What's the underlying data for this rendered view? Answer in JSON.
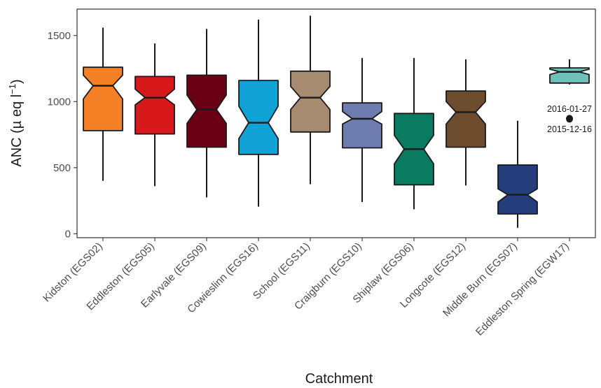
{
  "chart_data": {
    "type": "box",
    "xlabel": "Catchment",
    "ylabel": "ANC (µ eq l⁻¹)",
    "ylim": [
      -30,
      1700
    ],
    "yticks": [
      0,
      500,
      1000,
      1500
    ],
    "grid": false,
    "notched": true,
    "series": [
      {
        "name": "Kidston (EGS02)",
        "color": "#F58025",
        "min": 400,
        "q1": 780,
        "median": 1120,
        "q3": 1260,
        "max": 1560,
        "notch_low": 1020,
        "notch_high": 1200
      },
      {
        "name": "Eddleston (EGS05)",
        "color": "#D7191C",
        "min": 360,
        "q1": 755,
        "median": 1030,
        "q3": 1190,
        "max": 1440,
        "notch_low": 975,
        "notch_high": 1095
      },
      {
        "name": "Earlyvale (EGS09)",
        "color": "#6B0015",
        "min": 275,
        "q1": 655,
        "median": 940,
        "q3": 1200,
        "max": 1550,
        "notch_low": 835,
        "notch_high": 1050
      },
      {
        "name": "Cowieslinn (EGS16)",
        "color": "#12A3D6",
        "min": 205,
        "q1": 600,
        "median": 840,
        "q3": 1160,
        "max": 1620,
        "notch_low": 720,
        "notch_high": 965
      },
      {
        "name": "School (EGS11)",
        "color": "#A68B70",
        "min": 375,
        "q1": 770,
        "median": 1030,
        "q3": 1230,
        "max": 1650,
        "notch_low": 940,
        "notch_high": 1115
      },
      {
        "name": "Craigburn (EGS10)",
        "color": "#6E7CB0",
        "min": 240,
        "q1": 650,
        "median": 870,
        "q3": 990,
        "max": 1330,
        "notch_low": 830,
        "notch_high": 925
      },
      {
        "name": "Shiplaw (EGS06)",
        "color": "#0A7B61",
        "min": 185,
        "q1": 370,
        "median": 640,
        "q3": 910,
        "max": 1330,
        "notch_low": 530,
        "notch_high": 745
      },
      {
        "name": "Longcote (EGS12)",
        "color": "#6E4D2E",
        "min": 365,
        "q1": 655,
        "median": 920,
        "q3": 1080,
        "max": 1320,
        "notch_low": 830,
        "notch_high": 1000
      },
      {
        "name": "Middle Burn (EGS07)",
        "color": "#233E7A",
        "min": 45,
        "q1": 150,
        "median": 295,
        "q3": 520,
        "max": 855,
        "notch_low": 240,
        "notch_high": 340
      },
      {
        "name": "Eddleston Spring (EGW17)",
        "color": "#6EC0B8",
        "min": 1130,
        "q1": 1140,
        "median": 1225,
        "q3": 1255,
        "max": 1320,
        "notch_low": 1205,
        "notch_high": 1245,
        "outliers": [
          {
            "value": 870,
            "labels": [
              "2016-01-27",
              "2015-12-16"
            ]
          }
        ]
      }
    ]
  }
}
